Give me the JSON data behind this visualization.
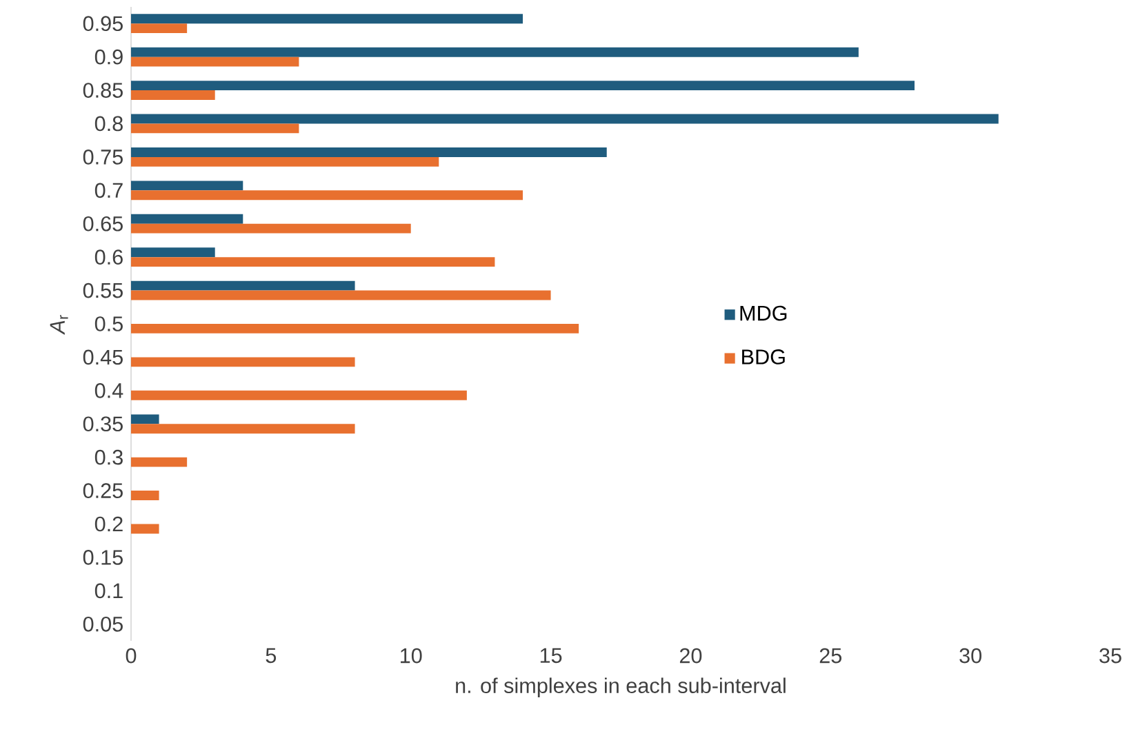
{
  "chart_data": {
    "type": "bar",
    "orientation": "horizontal",
    "categories": [
      "0.95",
      "0.9",
      "0.85",
      "0.8",
      "0.75",
      "0.7",
      "0.65",
      "0.6",
      "0.55",
      "0.5",
      "0.45",
      "0.4",
      "0.35",
      "0.3",
      "0.25",
      "0.2",
      "0.15",
      "0.1",
      "0.05"
    ],
    "series": [
      {
        "name": "MDG",
        "color": "#1f5c7e",
        "values": [
          14,
          26,
          28,
          31,
          17,
          4,
          4,
          3,
          8,
          0,
          0,
          0,
          1,
          0,
          0,
          0,
          0,
          0,
          0
        ]
      },
      {
        "name": "BDG",
        "color": "#e8702f",
        "values": [
          2,
          6,
          3,
          6,
          11,
          14,
          10,
          13,
          15,
          16,
          8,
          12,
          8,
          2,
          1,
          1,
          0,
          0,
          0
        ]
      }
    ],
    "xlabel": "n. of simplexes in each sub-interval",
    "ylabel": "*A*$_{r}$",
    "xlim": [
      0,
      35
    ],
    "xticks": [
      0,
      5,
      10,
      15,
      20,
      25,
      30,
      35
    ],
    "grid": false,
    "legend": "right"
  }
}
